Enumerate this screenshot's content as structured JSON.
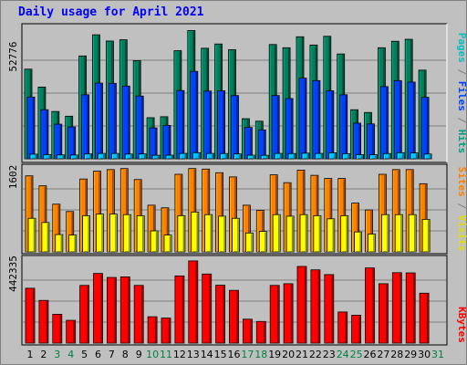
{
  "title": "Daily usage for April 2021",
  "panel_labels": {
    "hits_panel": {
      "max_label": "52776",
      "side_label_parts": [
        {
          "text": "Pages",
          "color": "#00c0c0"
        },
        {
          "text": " / ",
          "color": "#808080"
        },
        {
          "text": "Files",
          "color": "#0040ff"
        },
        {
          "text": " / ",
          "color": "#808080"
        },
        {
          "text": "Hits",
          "color": "#00a080"
        }
      ]
    },
    "visits_panel": {
      "max_label": "1602",
      "side_label_parts": [
        {
          "text": "Sites",
          "color": "#ff8000"
        },
        {
          "text": " / ",
          "color": "#808080"
        },
        {
          "text": "Visits",
          "color": "#e0e000"
        }
      ]
    },
    "kbytes_panel": {
      "max_label": "442335",
      "side_label_parts": [
        {
          "text": "KBytes",
          "color": "#ff0000"
        }
      ]
    }
  },
  "colors": {
    "hits": "#00805c",
    "files": "#0040ff",
    "pages": "#00c0ff",
    "sites": "#ff8000",
    "visits": "#ffff00",
    "kbytes": "#ff0000",
    "weekday_label": "#000000",
    "weekend_label": "#008040",
    "grid": "#808080"
  },
  "chart_data": [
    {
      "type": "bar",
      "title": "Daily usage for April 2021",
      "categories": [
        "1",
        "2",
        "3",
        "4",
        "5",
        "6",
        "7",
        "8",
        "9",
        "10",
        "11",
        "12",
        "13",
        "14",
        "15",
        "16",
        "17",
        "18",
        "19",
        "20",
        "21",
        "22",
        "23",
        "24",
        "25",
        "26",
        "27",
        "28",
        "29",
        "30",
        "31"
      ],
      "weekend_days": [
        "3",
        "4",
        "10",
        "11",
        "17",
        "18",
        "24",
        "25",
        "31"
      ],
      "ylim": [
        0,
        52776
      ],
      "series": [
        {
          "name": "Hits",
          "values": [
            36000,
            28800,
            19000,
            17100,
            41300,
            49800,
            47300,
            47800,
            39400,
            16500,
            16900,
            43400,
            51500,
            44400,
            46100,
            43800,
            16100,
            15100,
            45900,
            44600,
            49000,
            45700,
            49200,
            42100,
            19700,
            18600,
            44600,
            47200,
            48000,
            35600,
            0
          ]
        },
        {
          "name": "Files",
          "values": [
            24800,
            19700,
            13900,
            12800,
            25700,
            30400,
            30300,
            29200,
            25200,
            12400,
            13400,
            27400,
            35100,
            27200,
            27300,
            25400,
            12600,
            11600,
            25400,
            24200,
            32400,
            31400,
            27300,
            25700,
            14300,
            14000,
            29000,
            31400,
            30800,
            24700,
            0
          ]
        },
        {
          "name": "Pages",
          "values": [
            1850,
            1650,
            1550,
            1500,
            1950,
            2150,
            2150,
            1900,
            1950,
            1400,
            1450,
            2150,
            2450,
            2150,
            2100,
            1950,
            1450,
            1400,
            2150,
            2100,
            2250,
            2150,
            2400,
            2050,
            1650,
            1600,
            2100,
            2450,
            2350,
            1900,
            0
          ]
        }
      ]
    },
    {
      "type": "bar",
      "categories": [
        "1",
        "2",
        "3",
        "4",
        "5",
        "6",
        "7",
        "8",
        "9",
        "10",
        "11",
        "12",
        "13",
        "14",
        "15",
        "16",
        "17",
        "18",
        "19",
        "20",
        "21",
        "22",
        "23",
        "24",
        "25",
        "26",
        "27",
        "28",
        "29",
        "30",
        "31"
      ],
      "ylim": [
        0,
        1602
      ],
      "series": [
        {
          "name": "Sites",
          "values": [
            1450,
            1260,
            910,
            770,
            1390,
            1540,
            1570,
            1590,
            1380,
            890,
            840,
            1480,
            1590,
            1580,
            1510,
            1430,
            890,
            790,
            1470,
            1320,
            1560,
            1460,
            1400,
            1400,
            930,
            800,
            1480,
            1570,
            1570,
            1300,
            0
          ]
        },
        {
          "name": "Visits",
          "values": [
            640,
            560,
            330,
            320,
            690,
            720,
            720,
            710,
            690,
            400,
            320,
            690,
            760,
            710,
            680,
            640,
            360,
            390,
            710,
            680,
            710,
            690,
            630,
            690,
            380,
            340,
            710,
            710,
            710,
            620,
            0
          ]
        }
      ]
    },
    {
      "type": "bar",
      "categories": [
        "1",
        "2",
        "3",
        "4",
        "5",
        "6",
        "7",
        "8",
        "9",
        "10",
        "11",
        "12",
        "13",
        "14",
        "15",
        "16",
        "17",
        "18",
        "19",
        "20",
        "21",
        "22",
        "23",
        "24",
        "25",
        "26",
        "27",
        "28",
        "29",
        "30",
        "31"
      ],
      "ylim": [
        0,
        442335
      ],
      "series": [
        {
          "name": "KBytes",
          "values": [
            289000,
            225000,
            152000,
            120000,
            304000,
            367000,
            346000,
            349000,
            304000,
            139000,
            132000,
            354000,
            433000,
            364000,
            305000,
            278000,
            126000,
            114000,
            304000,
            313000,
            404000,
            386000,
            361000,
            164000,
            147000,
            396000,
            313000,
            371000,
            370000,
            263000,
            0
          ]
        }
      ]
    }
  ]
}
